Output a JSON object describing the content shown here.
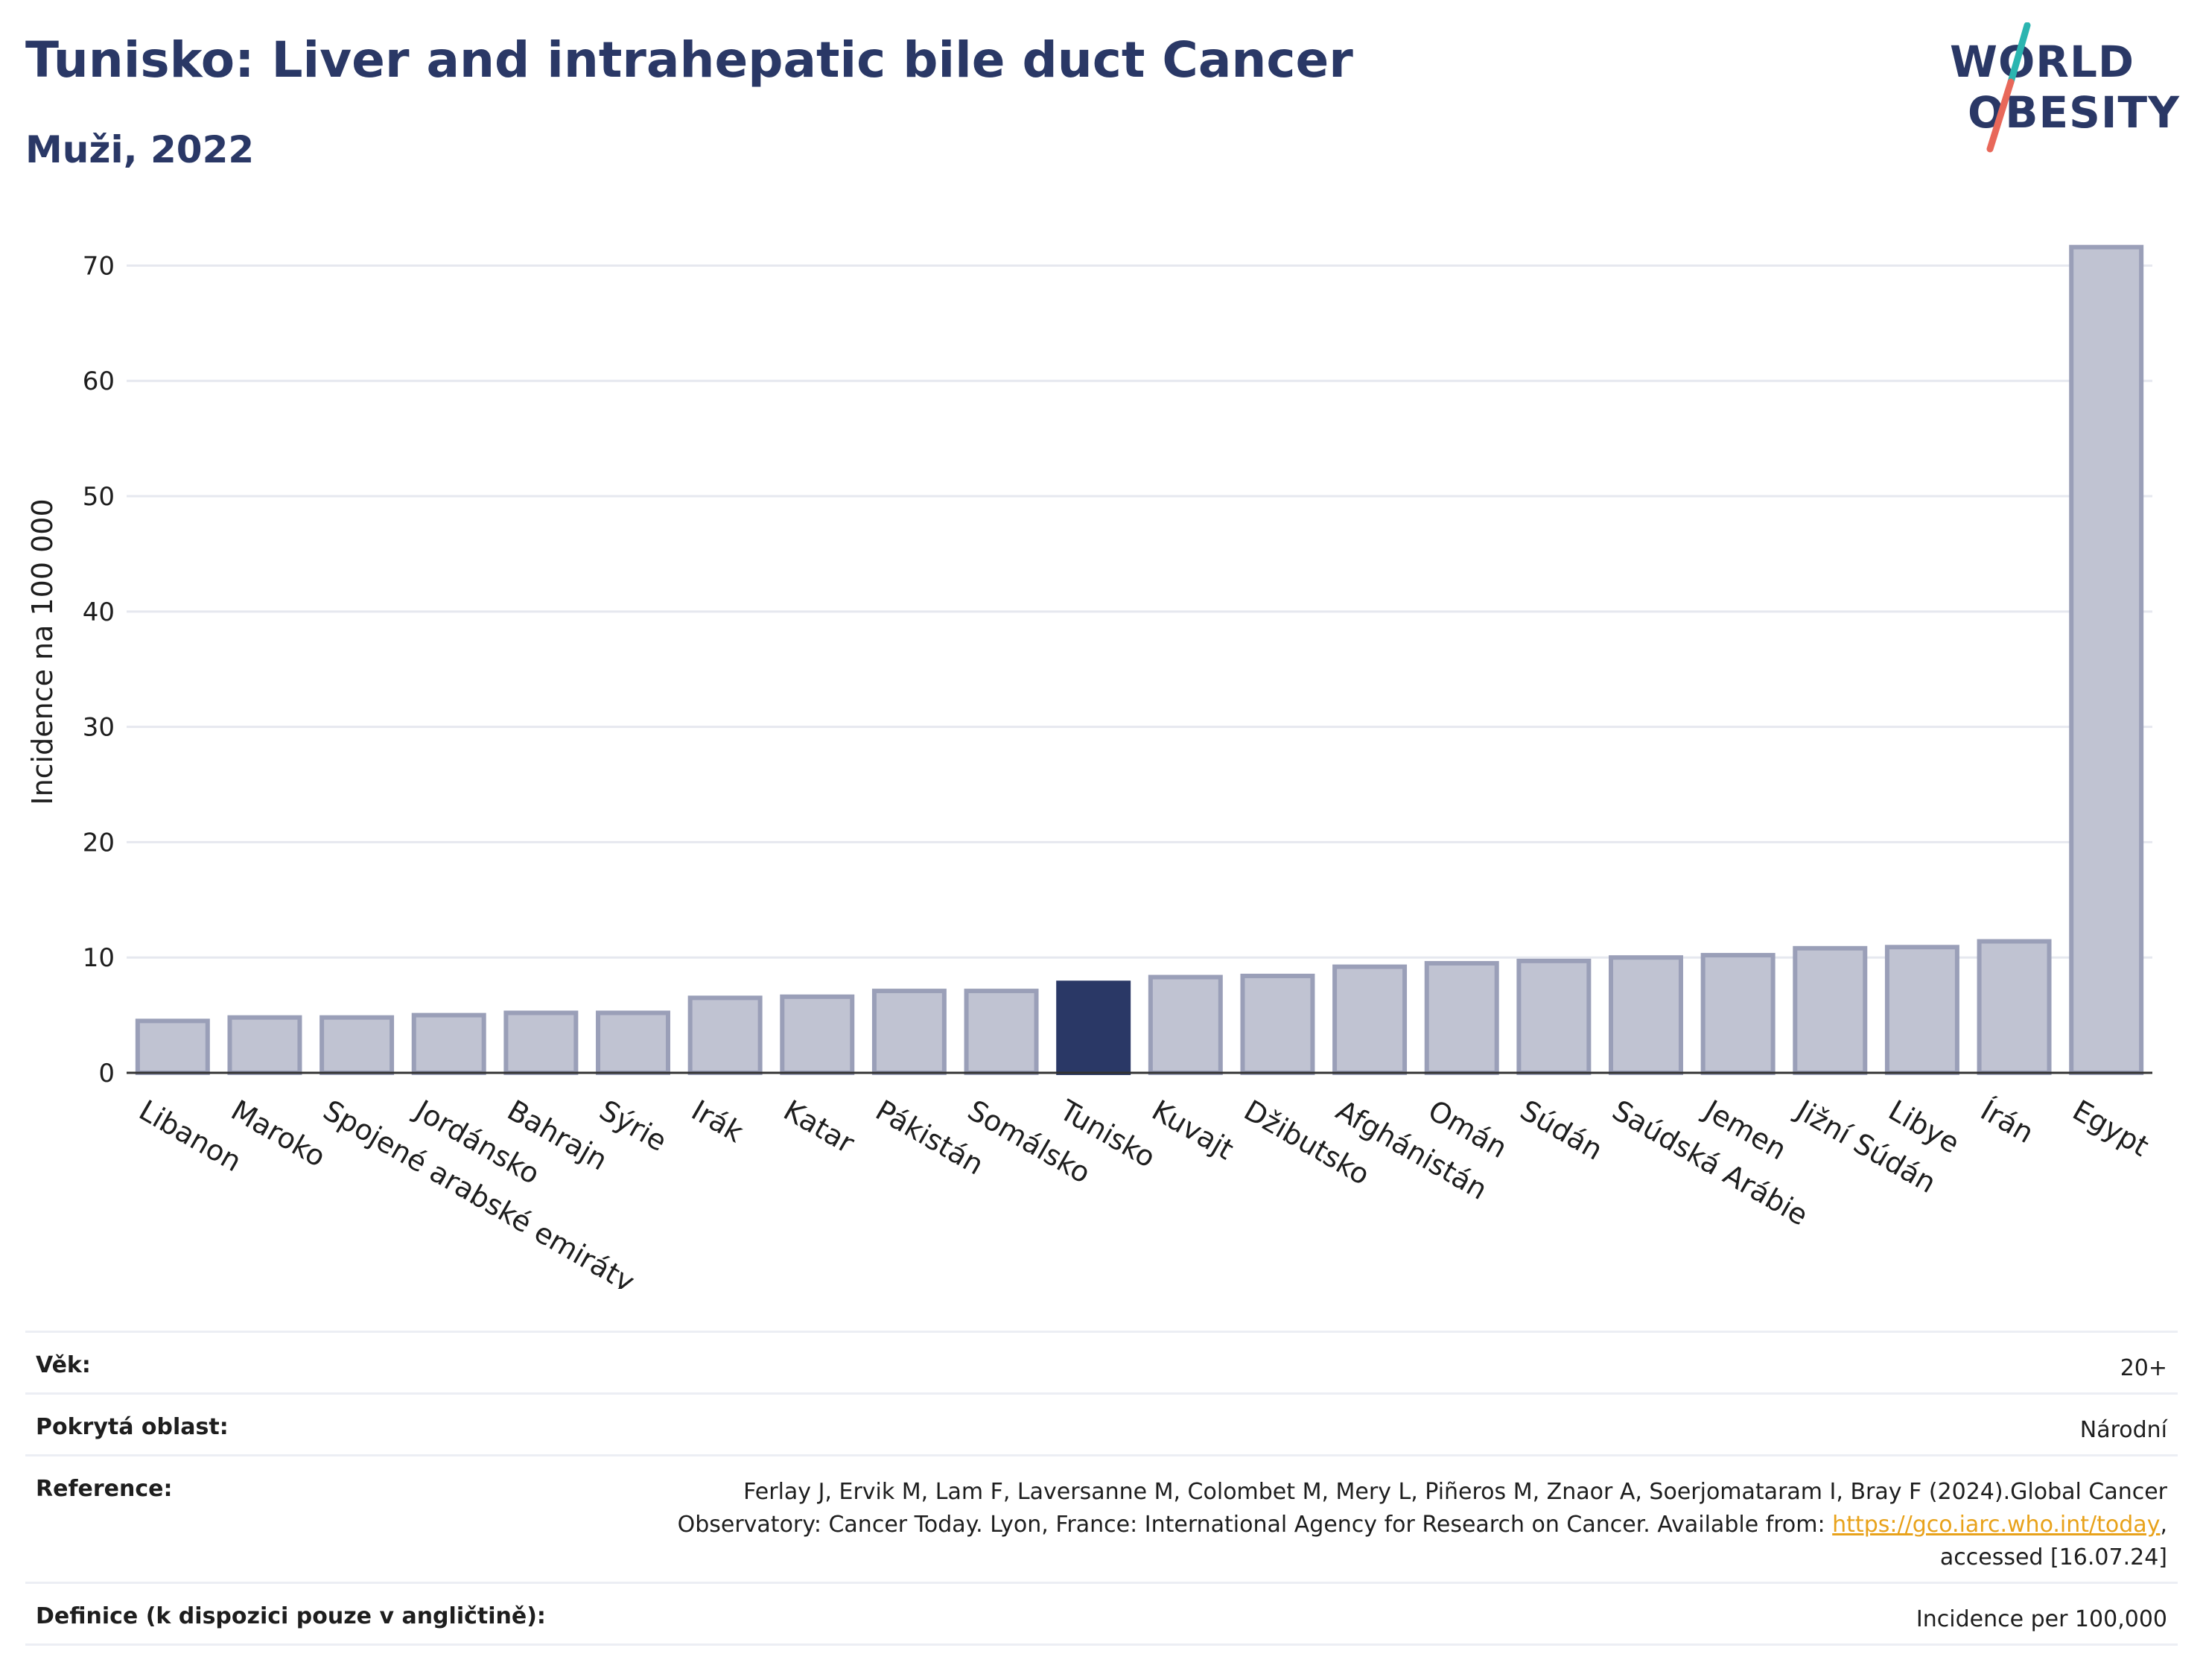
{
  "header": {
    "title": "Tunisko: Liver and intrahepatic bile duct Cancer",
    "subtitle": "Muži, 2022"
  },
  "logo": {
    "line1": "WORLD",
    "line2": "OBESITY",
    "colors": {
      "text": "#2a3866",
      "slash_top": "#2bb5b0",
      "slash_bottom": "#e8685a"
    }
  },
  "chart_data": {
    "type": "bar",
    "ylabel": "Incidence na 100 000",
    "xlabel": "",
    "ylim": [
      0,
      73
    ],
    "yticks": [
      0,
      10,
      20,
      30,
      40,
      50,
      60,
      70
    ],
    "grid": true,
    "highlight": "Tunisko",
    "colors": {
      "bar": "#c0c3d2",
      "bar_edge": "#9a9fb8",
      "highlight": "#2a3866",
      "grid": "#e6e8ef"
    },
    "categories": [
      "Libanon",
      "Maroko",
      "Spojené arabské emiráty",
      "Jordánsko",
      "Bahrajn",
      "Sýrie",
      "Irák",
      "Katar",
      "Pákistán",
      "Somálsko",
      "Tunisko",
      "Kuvajt",
      "Džibutsko",
      "Afghánistán",
      "Omán",
      "Súdán",
      "Saúdská Arábie",
      "Jemen",
      "Jižní Súdán",
      "Libye",
      "Írán",
      "Egypt"
    ],
    "values": [
      4.5,
      4.8,
      4.8,
      5.0,
      5.2,
      5.2,
      6.5,
      6.6,
      7.1,
      7.1,
      7.8,
      8.3,
      8.4,
      9.2,
      9.5,
      9.7,
      10.0,
      10.2,
      10.8,
      10.9,
      11.4,
      71.6
    ]
  },
  "meta": {
    "age_label": "Věk:",
    "age_value": "20+",
    "area_label": "Pokrytá oblast:",
    "area_value": "Národní",
    "ref_label": "Reference:",
    "ref_text_1": "Ferlay J, Ervik M, Lam F, Laversanne M, Colombet M, Mery L, Piñeros M, Znaor A, Soerjomataram I, Bray F (2024).Global Cancer",
    "ref_text_2": "Observatory: Cancer Today. Lyon, France: International Agency for Research on Cancer. Available from: ",
    "ref_link": "https://gco.iarc.who.int/today",
    "ref_text_3": ",",
    "ref_text_4": "accessed [16.07.24]",
    "def_label": "Definice (k dispozici pouze v angličtině):",
    "def_value": "Incidence per 100,000"
  }
}
